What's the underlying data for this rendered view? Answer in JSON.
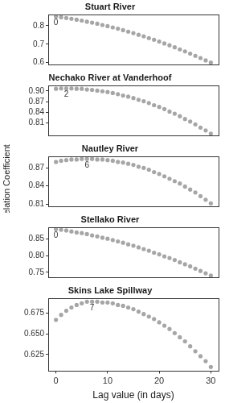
{
  "chart_data": [
    {
      "type": "scatter",
      "title": "Stuart River",
      "x": [
        0,
        1,
        2,
        3,
        4,
        5,
        6,
        7,
        8,
        9,
        10,
        11,
        12,
        13,
        14,
        15,
        16,
        17,
        18,
        19,
        20,
        21,
        22,
        23,
        24,
        25,
        26,
        27,
        28,
        29,
        30
      ],
      "values": [
        0.85,
        0.846,
        0.842,
        0.838,
        0.833,
        0.828,
        0.822,
        0.817,
        0.811,
        0.804,
        0.798,
        0.791,
        0.784,
        0.776,
        0.768,
        0.76,
        0.751,
        0.743,
        0.733,
        0.724,
        0.714,
        0.704,
        0.694,
        0.683,
        0.672,
        0.661,
        0.649,
        0.637,
        0.625,
        0.612,
        0.6
      ],
      "color": "#a6a6a6",
      "marker": "circle",
      "xlim": [
        -1.5,
        31.5
      ],
      "xticks": [
        0,
        10,
        20,
        30
      ],
      "ylim": [
        0.59,
        0.86
      ],
      "yticks": [
        0.6,
        0.7,
        0.8
      ],
      "grid": false,
      "tick_labels": "y",
      "annotations": [
        {
          "x": 0,
          "y": 0.85,
          "text": "0"
        }
      ]
    },
    {
      "type": "scatter",
      "title": "Nechako River at Vanderhoof",
      "x": [
        0,
        1,
        2,
        3,
        4,
        5,
        6,
        7,
        8,
        9,
        10,
        11,
        12,
        13,
        14,
        15,
        16,
        17,
        18,
        19,
        20,
        21,
        22,
        23,
        24,
        25,
        26,
        27,
        28,
        29,
        30
      ],
      "values": [
        0.906,
        0.907,
        0.907,
        0.907,
        0.906,
        0.906,
        0.904,
        0.903,
        0.901,
        0.899,
        0.897,
        0.894,
        0.891,
        0.887,
        0.884,
        0.88,
        0.875,
        0.871,
        0.866,
        0.86,
        0.855,
        0.849,
        0.842,
        0.836,
        0.829,
        0.821,
        0.814,
        0.806,
        0.797,
        0.789,
        0.78
      ],
      "color": "#a6a6a6",
      "marker": "circle",
      "xlim": [
        -1.5,
        31.5
      ],
      "xticks": [
        0,
        10,
        20,
        30
      ],
      "ylim": [
        0.775,
        0.915
      ],
      "yticks": [
        0.81,
        0.84,
        0.87,
        {
          "value": 0.9,
          "label": "0.90"
        }
      ],
      "grid": false,
      "tick_labels": "y",
      "annotations": [
        {
          "x": 2,
          "y": 0.907,
          "text": "2"
        }
      ]
    },
    {
      "type": "scatter",
      "title": "Nautley River",
      "y_label": "Correlation Coefficient (ρ)",
      "x": [
        0,
        1,
        2,
        3,
        4,
        5,
        6,
        7,
        8,
        9,
        10,
        11,
        12,
        13,
        14,
        15,
        16,
        17,
        18,
        19,
        20,
        21,
        22,
        23,
        24,
        25,
        26,
        27,
        28,
        29,
        30
      ],
      "values": [
        0.88,
        0.882,
        0.883,
        0.884,
        0.884,
        0.885,
        0.885,
        0.885,
        0.884,
        0.884,
        0.883,
        0.882,
        0.88,
        0.879,
        0.877,
        0.875,
        0.872,
        0.87,
        0.867,
        0.863,
        0.86,
        0.856,
        0.852,
        0.848,
        0.844,
        0.839,
        0.834,
        0.829,
        0.823,
        0.817,
        0.811
      ],
      "color": "#a6a6a6",
      "marker": "circle",
      "xlim": [
        -1.5,
        31.5
      ],
      "xticks": [
        0,
        10,
        20,
        30
      ],
      "ylim": [
        0.806,
        0.889
      ],
      "yticks": [
        0.81,
        0.84,
        0.87
      ],
      "grid": false,
      "tick_labels": "y",
      "annotations": [
        {
          "x": 6,
          "y": 0.885,
          "text": "6"
        }
      ]
    },
    {
      "type": "scatter",
      "title": "Stellako River",
      "x": [
        0,
        1,
        2,
        3,
        4,
        5,
        6,
        7,
        8,
        9,
        10,
        11,
        12,
        13,
        14,
        15,
        16,
        17,
        18,
        19,
        20,
        21,
        22,
        23,
        24,
        25,
        26,
        27,
        28,
        29,
        30
      ],
      "values": [
        0.88,
        0.878,
        0.876,
        0.873,
        0.87,
        0.868,
        0.865,
        0.861,
        0.858,
        0.854,
        0.851,
        0.847,
        0.843,
        0.839,
        0.834,
        0.83,
        0.825,
        0.82,
        0.815,
        0.809,
        0.804,
        0.798,
        0.793,
        0.787,
        0.78,
        0.774,
        0.768,
        0.761,
        0.754,
        0.747,
        0.74
      ],
      "color": "#a6a6a6",
      "marker": "circle",
      "xlim": [
        -1.5,
        31.5
      ],
      "xticks": [
        0,
        10,
        20,
        30
      ],
      "ylim": [
        0.735,
        0.885
      ],
      "yticks": [
        0.75,
        {
          "value": 0.8,
          "label": "0.80"
        },
        0.85
      ],
      "grid": false,
      "tick_labels": "y",
      "annotations": [
        {
          "x": 0,
          "y": 0.88,
          "text": "0"
        }
      ]
    },
    {
      "type": "scatter",
      "title": "Skins Lake Spillway",
      "x_label": "Lag value (in days)",
      "x": [
        0,
        1,
        2,
        3,
        4,
        5,
        6,
        7,
        8,
        9,
        10,
        11,
        12,
        13,
        14,
        15,
        16,
        17,
        18,
        19,
        20,
        21,
        22,
        23,
        24,
        25,
        26,
        27,
        28,
        29,
        30
      ],
      "values": [
        0.667,
        0.673,
        0.678,
        0.682,
        0.685,
        0.687,
        0.689,
        0.689,
        0.689,
        0.688,
        0.688,
        0.687,
        0.685,
        0.684,
        0.682,
        0.68,
        0.677,
        0.674,
        0.671,
        0.668,
        0.664,
        0.66,
        0.656,
        0.651,
        0.646,
        0.641,
        0.635,
        0.629,
        0.623,
        0.617,
        0.61
      ],
      "color": "#a6a6a6",
      "marker": "circle",
      "xlim": [
        -1.5,
        31.5
      ],
      "xticks": [
        0,
        10,
        20,
        30
      ],
      "ylim": [
        0.605,
        0.693
      ],
      "yticks": [
        0.625,
        {
          "value": 0.65,
          "label": "0.650"
        },
        0.675
      ],
      "grid": false,
      "annotations": [
        {
          "x": 7,
          "y": 0.689,
          "text": "7"
        }
      ]
    }
  ]
}
